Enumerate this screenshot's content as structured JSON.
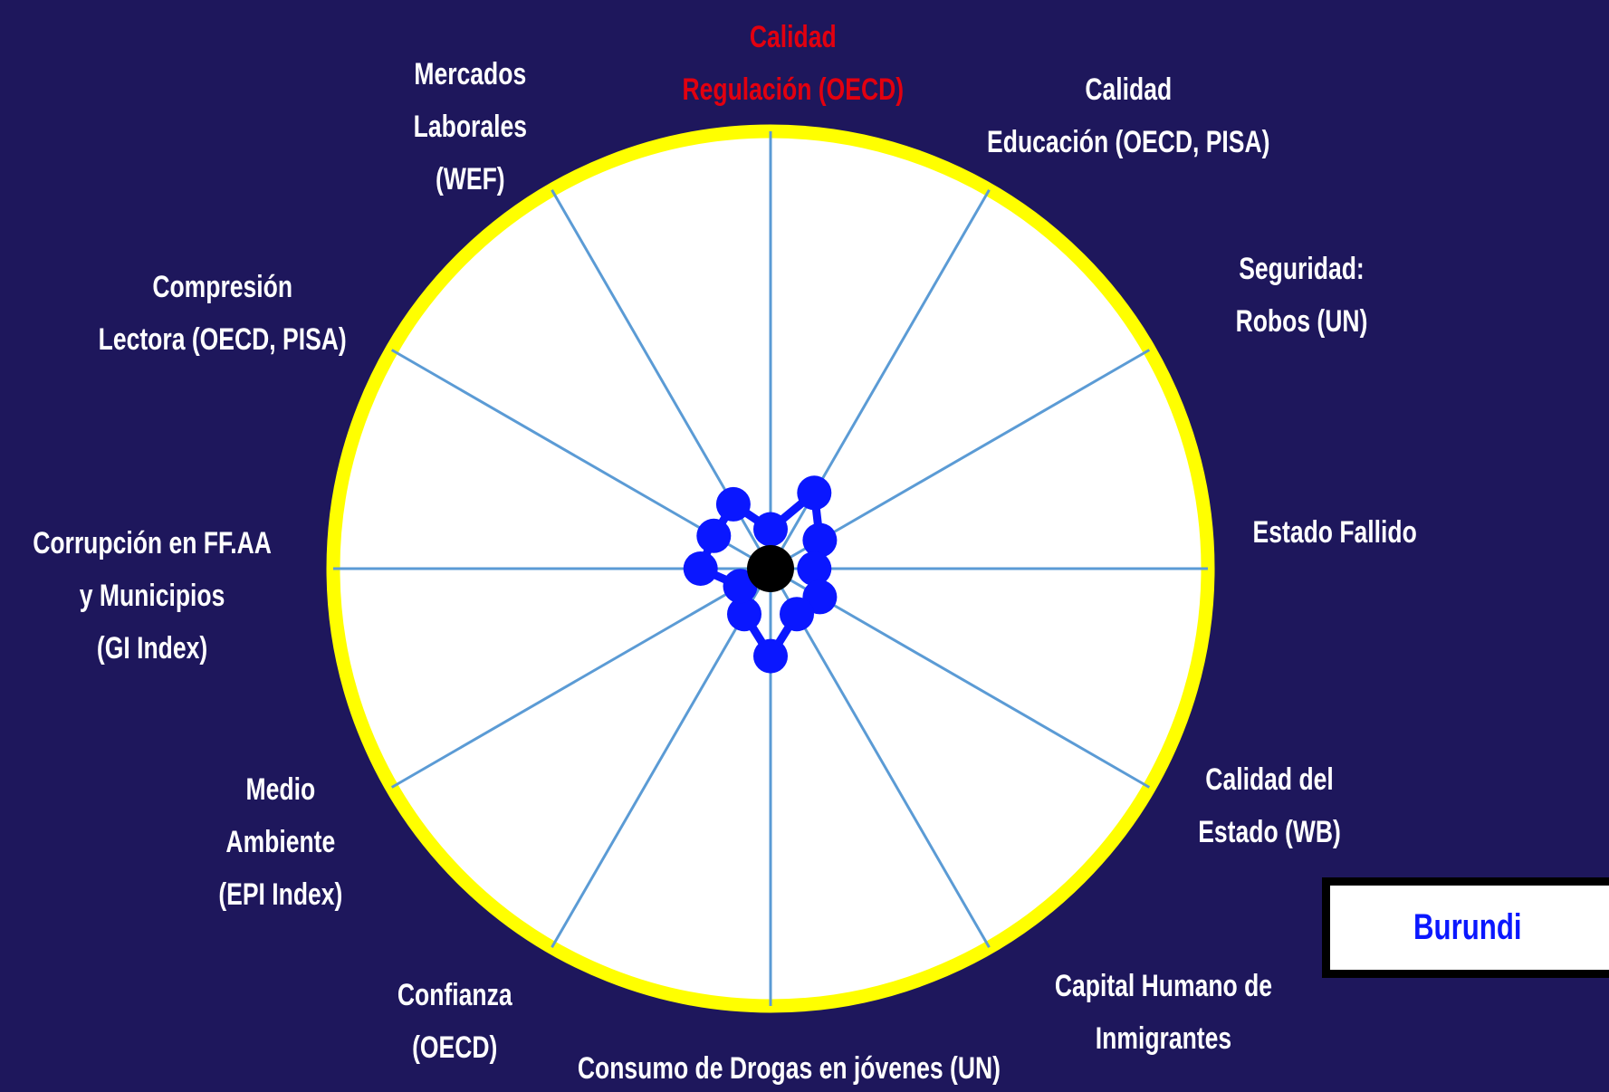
{
  "chart_data": {
    "type": "radar",
    "title": "",
    "axes": [
      "Calidad\nRegulación (OECD)",
      "Calidad\nEducación (OECD, PISA)",
      "Seguridad:\nRobos (UN)",
      "Estado Fallido",
      "Calidad del\nEstado (WB)",
      "Capital Humano de\nInmigrantes",
      "Consumo de Drogas en jóvenes (UN)",
      "Confianza\n(OECD)",
      "Medio\nAmbiente\n(EPI Index)",
      "Corrupción en FF.AA\ny Municipios\n(GI Index)",
      "Compresión\nLectora (OECD, PISA)",
      "Mercados\nLaborales\n(WEF)"
    ],
    "highlighted_axis": "Calidad\nRegulación (OECD)",
    "series": [
      {
        "name": "Burundi",
        "values": [
          0.09,
          0.2,
          0.13,
          0.1,
          0.13,
          0.12,
          0.2,
          0.12,
          0.08,
          0.16,
          0.15,
          0.17
        ]
      }
    ],
    "rmin": 0,
    "rmax": 1,
    "grid": true
  },
  "legend": {
    "country": "Burundi"
  },
  "colors": {
    "background": "#1e175c",
    "plot_fill": "#ffffff",
    "rim": "#ffff00",
    "spokes": "#5b9bd5",
    "series": "#0a17ff",
    "center_dot": "#000000",
    "label_text": "#ffffff",
    "highlight_text": "#e2000f"
  }
}
